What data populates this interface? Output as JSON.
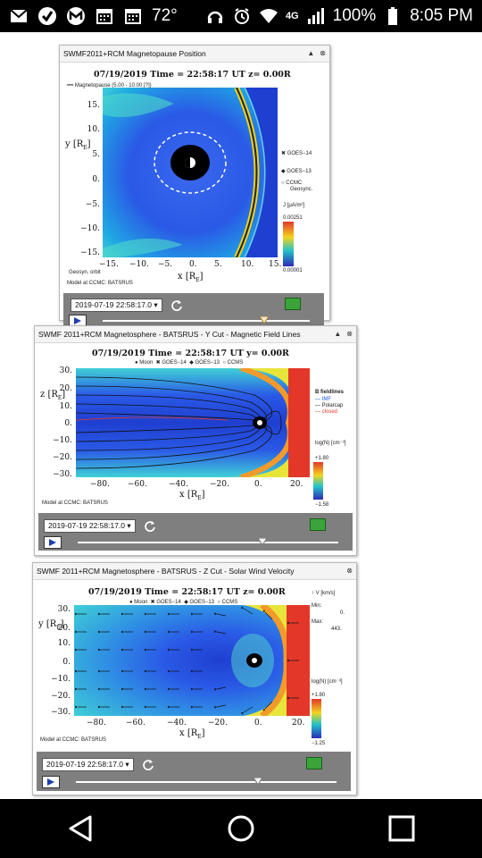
{
  "status_bar": {
    "temperature": "72°",
    "network": "4G",
    "battery": "100%",
    "time": "8:05 PM"
  },
  "widgets": [
    {
      "title": "SWMF2011+RCM Magnetopause Position",
      "header": "07/19/2019 Time = 22:58:17 UT z= 0.00R",
      "legend_line": "Magnetopause (5.00 - 10.00 [?])",
      "y_axis_label": "y [R",
      "x_axis_label": "x [R",
      "y_ticks": [
        "15.",
        "10.",
        "5.",
        "0.",
        "−5.",
        "−10.",
        "−15."
      ],
      "x_ticks": [
        "−15.",
        "−10.",
        "−5.",
        "0.",
        "5.",
        "10.",
        "15."
      ],
      "side_legend": [
        "GOES−14",
        "GOES−13",
        "CCMC",
        "Geosync."
      ],
      "orbit_label": "Geosyn. orbit",
      "colorbar_label": "J",
      "colorbar_max": "0.00251",
      "colorbar_min": "0.00001",
      "model_credit": "Model at CCMC: BATSRUS",
      "time_value": "2019-07-19 22:58:17.0"
    },
    {
      "title": "SWMF 2011+RCM Magnetosphere - BATSRUS - Y Cut - Magnetic Field Lines",
      "header": "07/19/2019 Time = 22:58:17 UT y= 0.00R",
      "legend_items": [
        "Moon",
        "GOES−14",
        "GOES−13",
        "CCMS"
      ],
      "y_axis_label": "z [R",
      "x_axis_label": "x [R",
      "y_ticks": [
        "30.",
        "20.",
        "10.",
        "0.",
        "−10.",
        "−20.",
        "−30."
      ],
      "x_ticks": [
        "−80.",
        "−60.",
        "−40.",
        "−20.",
        "0.",
        "20."
      ],
      "side_legend": [
        "B fieldlines",
        "IMF",
        "Polarcap",
        "closed"
      ],
      "colorbar_label": "log(N) [cm⁻³]",
      "colorbar_max": "+1.80",
      "colorbar_min": "−1.58",
      "model_credit": "Model at CCMC: BATSRUS",
      "time_value": "2019-07-19 22:58:17.0"
    },
    {
      "title": "SWMF 2011+RCM Magnetosphere - BATSRUS - Z Cut - Solar Wind Velocity",
      "header": "07/19/2019 Time = 22:58:17 UT z= 0.00R",
      "legend_items": [
        "Moon",
        "GOES−14",
        "GOES−13",
        "CCMS"
      ],
      "y_axis_label": "y [R",
      "x_axis_label": "x [R",
      "y_ticks": [
        "30.",
        "20.",
        "10.",
        "0.",
        "−10.",
        "−20.",
        "−30."
      ],
      "x_ticks": [
        "−80.",
        "−60.",
        "−40.",
        "−20.",
        "0.",
        "20."
      ],
      "vector_label": "V [km/s]",
      "min_label": "Min:",
      "min_value": "0.",
      "max_label": "Max:",
      "max_value": "443.",
      "colorbar_label": "log(N) [cm⁻³]",
      "colorbar_max": "+1.80",
      "colorbar_min": "−1.25",
      "model_credit": "Model at CCMC: BATSRUS",
      "time_value": "2019-07-19 22:58:17.0"
    }
  ],
  "slider_positions": [
    0.78,
    0.71,
    0.7
  ],
  "colors": {
    "status_bg": "#000000",
    "control_bar": "#7f7f7f",
    "boundary_red": "#e3372a",
    "plasma_blue": "#1f55e0"
  }
}
